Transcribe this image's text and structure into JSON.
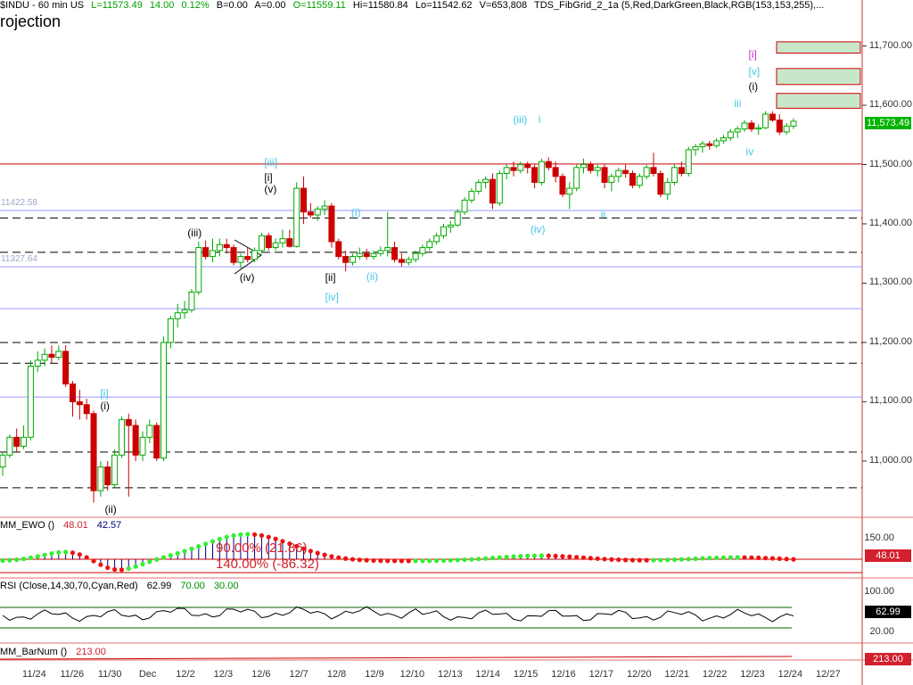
{
  "header": {
    "symbol": "$INDU - 60 min  US",
    "last": "L=11573.49",
    "change": "14.00",
    "pct": "0.12%",
    "b": "B=0.00",
    "a": "A=0.00",
    "open": "O=11559.11",
    "hi": "Hi=11580.84",
    "lo": "Lo=11542.62",
    "vol": "V=653,808",
    "indicator": "TDS_FibGrid_2_1a (5,Red,DarkGreen,Black,RGB(153,153,255),...",
    "big_title": "rojection"
  },
  "colors": {
    "up": "#00aa00",
    "down": "#cc0000",
    "cyan": "#46c6e6",
    "red": "#d2202c",
    "green_dot": "#33ee33",
    "panel_border": "#e07070"
  },
  "chart_data": {
    "type": "candlestick",
    "price_axis": {
      "ticks": [
        "11,000.00",
        "11,100.00",
        "11,200.00",
        "11,300.00",
        "11,400.00",
        "11,500.00",
        "11,600.00",
        "11,700.00"
      ],
      "values": [
        11000,
        11100,
        11200,
        11300,
        11400,
        11500,
        11600,
        11700
      ],
      "last_label": "11,573.49",
      "last_value": 11573.49
    },
    "fib_labels": [
      {
        "text": "11422.58",
        "value": 11422.58
      },
      {
        "text": "11327.64",
        "value": 11327.64
      }
    ],
    "levels": {
      "red_solid": [
        11501
      ],
      "blue_solid": [
        11422.58,
        11327.64,
        11257,
        11108
      ],
      "dashed": [
        11410,
        11352,
        11200,
        11165,
        11015,
        10955
      ]
    },
    "boxes": [
      [
        11688,
        11707
      ],
      [
        11635,
        11662
      ],
      [
        11595,
        11620
      ]
    ],
    "date_labels": [
      "11/24",
      "11/26",
      "11/30",
      "Dec",
      "12/2",
      "12/3",
      "12/6",
      "12/7",
      "12/8",
      "12/9",
      "12/10",
      "12/13",
      "12/14",
      "12/15",
      "12/16",
      "12/17",
      "12/20",
      "12/21",
      "12/22",
      "12/23",
      "12/24",
      "12/27"
    ],
    "waves": [
      {
        "text": "[i]",
        "color": "#cc33cc",
        "value": 11684,
        "day": 20.13
      },
      {
        "text": "[v]",
        "color": "#46c6e6",
        "value": 11655,
        "day": 20.13
      },
      {
        "text": "(i)",
        "color": "#000000",
        "value": 11630,
        "day": 20.13
      },
      {
        "text": "iii",
        "color": "#46c6e6",
        "value": 11602,
        "day": 19.75
      },
      {
        "text": "iv",
        "color": "#46c6e6",
        "value": 11520,
        "day": 20.06
      },
      {
        "text": "i",
        "color": "#46c6e6",
        "value": 11575,
        "day": 14.57
      },
      {
        "text": "(iii)",
        "color": "#46c6e6",
        "value": 11574,
        "day": 13.9
      },
      {
        "text": "(iv)",
        "color": "#46c6e6",
        "value": 11390,
        "day": 14.36
      },
      {
        "text": "ii",
        "color": "#46c6e6",
        "value": 11415,
        "day": 16.22
      },
      {
        "text": "[iii]",
        "color": "#46c6e6",
        "value": 11502,
        "day": 7.32
      },
      {
        "text": "[i]",
        "color": "#000000",
        "value": 11477,
        "day": 7.32
      },
      {
        "text": "(v)",
        "color": "#000000",
        "value": 11457,
        "day": 7.32
      },
      {
        "text": "(i)",
        "color": "#46c6e6",
        "value": 11418,
        "day": 9.62
      },
      {
        "text": "(iii)",
        "color": "#000000",
        "value": 11384,
        "day": 5.29
      },
      {
        "text": "(iv)",
        "color": "#000000",
        "value": 11308,
        "day": 6.67
      },
      {
        "text": "[ii]",
        "color": "#000000",
        "value": 11308,
        "day": 8.93
      },
      {
        "text": "[iv]",
        "color": "#46c6e6",
        "value": 11275,
        "day": 8.93
      },
      {
        "text": "(ii)",
        "color": "#46c6e6",
        "value": 11310,
        "day": 10.02
      },
      {
        "text": "[i]",
        "color": "#46c6e6",
        "value": 11112,
        "day": 2.98
      },
      {
        "text": "(i)",
        "color": "#000000",
        "value": 11092,
        "day": 2.98
      },
      {
        "text": "(ii)",
        "color": "#000000",
        "value": 10917,
        "day": 3.1
      }
    ],
    "candles": [
      {
        "o": 10990,
        "h": 11015,
        "l": 10975,
        "c": 11010
      },
      {
        "o": 11010,
        "h": 11045,
        "l": 11005,
        "c": 11040
      },
      {
        "o": 11040,
        "h": 11055,
        "l": 11015,
        "c": 11025
      },
      {
        "o": 11025,
        "h": 11060,
        "l": 11020,
        "c": 11040
      },
      {
        "o": 11040,
        "h": 11170,
        "l": 11035,
        "c": 11160
      },
      {
        "o": 11160,
        "h": 11185,
        "l": 11150,
        "c": 11170
      },
      {
        "o": 11170,
        "h": 11190,
        "l": 11160,
        "c": 11180
      },
      {
        "o": 11180,
        "h": 11195,
        "l": 11165,
        "c": 11175
      },
      {
        "o": 11175,
        "h": 11195,
        "l": 11170,
        "c": 11185
      },
      {
        "o": 11185,
        "h": 11195,
        "l": 11125,
        "c": 11130
      },
      {
        "o": 11130,
        "h": 11135,
        "l": 11075,
        "c": 11100
      },
      {
        "o": 11100,
        "h": 11120,
        "l": 11070,
        "c": 11095
      },
      {
        "o": 11095,
        "h": 11105,
        "l": 11070,
        "c": 11080
      },
      {
        "o": 11080,
        "h": 11085,
        "l": 10930,
        "c": 10950
      },
      {
        "o": 10950,
        "h": 11000,
        "l": 10940,
        "c": 10990
      },
      {
        "o": 10990,
        "h": 11000,
        "l": 10950,
        "c": 10960
      },
      {
        "o": 10960,
        "h": 11020,
        "l": 10955,
        "c": 11010
      },
      {
        "o": 11010,
        "h": 11075,
        "l": 11005,
        "c": 11070
      },
      {
        "o": 11070,
        "h": 11080,
        "l": 10940,
        "c": 11060
      },
      {
        "o": 11060,
        "h": 11070,
        "l": 11000,
        "c": 11010
      },
      {
        "o": 11010,
        "h": 11050,
        "l": 11000,
        "c": 11040
      },
      {
        "o": 11040,
        "h": 11070,
        "l": 11030,
        "c": 11060
      },
      {
        "o": 11060,
        "h": 11065,
        "l": 11000,
        "c": 11005
      },
      {
        "o": 11005,
        "h": 11210,
        "l": 11000,
        "c": 11200
      },
      {
        "o": 11200,
        "h": 11245,
        "l": 11190,
        "c": 11240
      },
      {
        "o": 11240,
        "h": 11265,
        "l": 11225,
        "c": 11250
      },
      {
        "o": 11250,
        "h": 11270,
        "l": 11240,
        "c": 11255
      },
      {
        "o": 11255,
        "h": 11290,
        "l": 11250,
        "c": 11285
      },
      {
        "o": 11285,
        "h": 11370,
        "l": 11280,
        "c": 11360
      },
      {
        "o": 11360,
        "h": 11372,
        "l": 11340,
        "c": 11345
      },
      {
        "o": 11345,
        "h": 11375,
        "l": 11335,
        "c": 11355
      },
      {
        "o": 11355,
        "h": 11375,
        "l": 11345,
        "c": 11365
      },
      {
        "o": 11365,
        "h": 11375,
        "l": 11350,
        "c": 11360
      },
      {
        "o": 11360,
        "h": 11365,
        "l": 11330,
        "c": 11335
      },
      {
        "o": 11335,
        "h": 11350,
        "l": 11325,
        "c": 11345
      },
      {
        "o": 11345,
        "h": 11360,
        "l": 11335,
        "c": 11340
      },
      {
        "o": 11340,
        "h": 11360,
        "l": 11335,
        "c": 11355
      },
      {
        "o": 11355,
        "h": 11385,
        "l": 11350,
        "c": 11380
      },
      {
        "o": 11380,
        "h": 11385,
        "l": 11355,
        "c": 11360
      },
      {
        "o": 11360,
        "h": 11375,
        "l": 11355,
        "c": 11368
      },
      {
        "o": 11368,
        "h": 11390,
        "l": 11360,
        "c": 11375
      },
      {
        "o": 11375,
        "h": 11390,
        "l": 11360,
        "c": 11362
      },
      {
        "o": 11362,
        "h": 11470,
        "l": 11360,
        "c": 11460
      },
      {
        "o": 11460,
        "h": 11480,
        "l": 11400,
        "c": 11420
      },
      {
        "o": 11420,
        "h": 11435,
        "l": 11410,
        "c": 11415
      },
      {
        "o": 11415,
        "h": 11430,
        "l": 11405,
        "c": 11425
      },
      {
        "o": 11425,
        "h": 11440,
        "l": 11415,
        "c": 11430
      },
      {
        "o": 11430,
        "h": 11435,
        "l": 11360,
        "c": 11370
      },
      {
        "o": 11370,
        "h": 11375,
        "l": 11340,
        "c": 11345
      },
      {
        "o": 11345,
        "h": 11355,
        "l": 11320,
        "c": 11335
      },
      {
        "o": 11335,
        "h": 11350,
        "l": 11330,
        "c": 11345
      },
      {
        "o": 11345,
        "h": 11360,
        "l": 11340,
        "c": 11350
      },
      {
        "o": 11350,
        "h": 11358,
        "l": 11340,
        "c": 11345
      },
      {
        "o": 11345,
        "h": 11355,
        "l": 11340,
        "c": 11350
      },
      {
        "o": 11350,
        "h": 11362,
        "l": 11345,
        "c": 11355
      },
      {
        "o": 11355,
        "h": 11420,
        "l": 11345,
        "c": 11360
      },
      {
        "o": 11360,
        "h": 11370,
        "l": 11335,
        "c": 11340
      },
      {
        "o": 11340,
        "h": 11350,
        "l": 11328,
        "c": 11335
      },
      {
        "o": 11335,
        "h": 11345,
        "l": 11330,
        "c": 11340
      },
      {
        "o": 11340,
        "h": 11355,
        "l": 11335,
        "c": 11350
      },
      {
        "o": 11350,
        "h": 11365,
        "l": 11345,
        "c": 11360
      },
      {
        "o": 11360,
        "h": 11375,
        "l": 11355,
        "c": 11370
      },
      {
        "o": 11370,
        "h": 11385,
        "l": 11365,
        "c": 11380
      },
      {
        "o": 11380,
        "h": 11400,
        "l": 11375,
        "c": 11395
      },
      {
        "o": 11395,
        "h": 11405,
        "l": 11385,
        "c": 11398
      },
      {
        "o": 11398,
        "h": 11425,
        "l": 11395,
        "c": 11420
      },
      {
        "o": 11420,
        "h": 11445,
        "l": 11415,
        "c": 11440
      },
      {
        "o": 11440,
        "h": 11460,
        "l": 11435,
        "c": 11455
      },
      {
        "o": 11455,
        "h": 11475,
        "l": 11450,
        "c": 11470
      },
      {
        "o": 11470,
        "h": 11480,
        "l": 11460,
        "c": 11475
      },
      {
        "o": 11475,
        "h": 11485,
        "l": 11425,
        "c": 11435
      },
      {
        "o": 11435,
        "h": 11490,
        "l": 11430,
        "c": 11485
      },
      {
        "o": 11485,
        "h": 11500,
        "l": 11475,
        "c": 11495
      },
      {
        "o": 11495,
        "h": 11505,
        "l": 11480,
        "c": 11490
      },
      {
        "o": 11490,
        "h": 11505,
        "l": 11485,
        "c": 11500
      },
      {
        "o": 11500,
        "h": 11505,
        "l": 11485,
        "c": 11495
      },
      {
        "o": 11495,
        "h": 11500,
        "l": 11460,
        "c": 11470
      },
      {
        "o": 11470,
        "h": 11510,
        "l": 11465,
        "c": 11505
      },
      {
        "o": 11505,
        "h": 11512,
        "l": 11490,
        "c": 11495
      },
      {
        "o": 11495,
        "h": 11505,
        "l": 11470,
        "c": 11480
      },
      {
        "o": 11480,
        "h": 11485,
        "l": 11445,
        "c": 11450
      },
      {
        "o": 11450,
        "h": 11470,
        "l": 11425,
        "c": 11460
      },
      {
        "o": 11460,
        "h": 11500,
        "l": 11455,
        "c": 11495
      },
      {
        "o": 11495,
        "h": 11510,
        "l": 11485,
        "c": 11500
      },
      {
        "o": 11500,
        "h": 11505,
        "l": 11485,
        "c": 11490
      },
      {
        "o": 11490,
        "h": 11500,
        "l": 11480,
        "c": 11495
      },
      {
        "o": 11495,
        "h": 11500,
        "l": 11460,
        "c": 11470
      },
      {
        "o": 11470,
        "h": 11485,
        "l": 11455,
        "c": 11480
      },
      {
        "o": 11480,
        "h": 11495,
        "l": 11470,
        "c": 11490
      },
      {
        "o": 11490,
        "h": 11500,
        "l": 11478,
        "c": 11485
      },
      {
        "o": 11485,
        "h": 11490,
        "l": 11460,
        "c": 11465
      },
      {
        "o": 11465,
        "h": 11485,
        "l": 11460,
        "c": 11480
      },
      {
        "o": 11480,
        "h": 11500,
        "l": 11475,
        "c": 11495
      },
      {
        "o": 11495,
        "h": 11520,
        "l": 11480,
        "c": 11485
      },
      {
        "o": 11485,
        "h": 11490,
        "l": 11445,
        "c": 11450
      },
      {
        "o": 11450,
        "h": 11478,
        "l": 11440,
        "c": 11470
      },
      {
        "o": 11470,
        "h": 11500,
        "l": 11465,
        "c": 11495
      },
      {
        "o": 11495,
        "h": 11505,
        "l": 11480,
        "c": 11485
      },
      {
        "o": 11485,
        "h": 11530,
        "l": 11480,
        "c": 11525
      },
      {
        "o": 11525,
        "h": 11535,
        "l": 11515,
        "c": 11530
      },
      {
        "o": 11530,
        "h": 11540,
        "l": 11520,
        "c": 11535
      },
      {
        "o": 11535,
        "h": 11540,
        "l": 11525,
        "c": 11532
      },
      {
        "o": 11532,
        "h": 11545,
        "l": 11528,
        "c": 11540
      },
      {
        "o": 11540,
        "h": 11550,
        "l": 11535,
        "c": 11545
      },
      {
        "o": 11545,
        "h": 11560,
        "l": 11540,
        "c": 11555
      },
      {
        "o": 11555,
        "h": 11565,
        "l": 11545,
        "c": 11560
      },
      {
        "o": 11560,
        "h": 11575,
        "l": 11555,
        "c": 11570
      },
      {
        "o": 11570,
        "h": 11575,
        "l": 11555,
        "c": 11560
      },
      {
        "o": 11560,
        "h": 11568,
        "l": 11550,
        "c": 11562
      },
      {
        "o": 11562,
        "h": 11590,
        "l": 11560,
        "c": 11585
      },
      {
        "o": 11585,
        "h": 11590,
        "l": 11572,
        "c": 11575
      },
      {
        "o": 11575,
        "h": 11585,
        "l": 11550,
        "c": 11555
      },
      {
        "o": 11555,
        "h": 11570,
        "l": 11550,
        "c": 11565
      },
      {
        "o": 11565,
        "h": 11578,
        "l": 11560,
        "c": 11573
      }
    ],
    "ewo": {
      "label": "MM_EWO ()",
      "value1": "48.01",
      "value2": "42.57",
      "axis_label": "150.00",
      "last_label": "48.01",
      "annotation1": "90.00% (21.86)",
      "annotation2": "140.00% (-86.32)"
    },
    "rsi": {
      "label": "RSI (Close,14,30,70,Cyan,Red)",
      "v1": "62.99",
      "v2": "70.00",
      "v3": "30.00",
      "axis_top": "100.00",
      "axis_bottom": "20.00",
      "last_label": "62.99"
    },
    "barnum": {
      "label": "MM_BarNum ()",
      "value": "213.00",
      "last_label": "213.00"
    }
  }
}
